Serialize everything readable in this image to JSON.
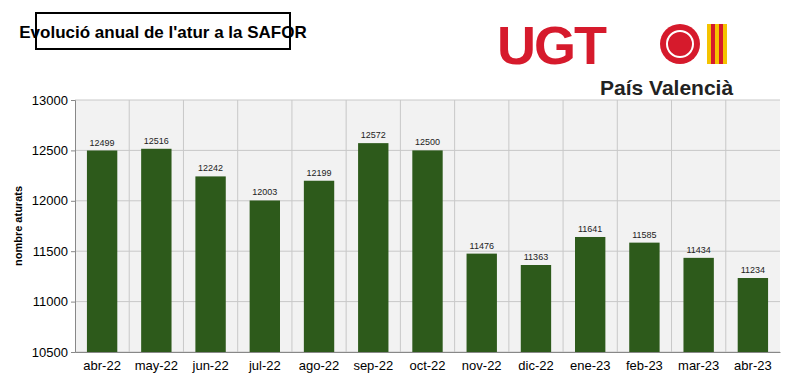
{
  "chart_data": {
    "type": "bar",
    "title": "Evolució anual de l'atur a la SAFOR",
    "annotations": [
      "UGT",
      "País Valencià"
    ],
    "y_label": "nombre aturats",
    "categories": [
      "abr-22",
      "may-22",
      "jun-22",
      "jul-22",
      "ago-22",
      "sep-22",
      "oct-22",
      "nov-22",
      "dic-22",
      "ene-23",
      "feb-23",
      "mar-23",
      "abr-23"
    ],
    "values": [
      12499,
      12516,
      12242,
      12003,
      12199,
      12572,
      12500,
      11476,
      11363,
      11641,
      11585,
      11434,
      11234
    ],
    "color": "#2d5a1b",
    "ylim": [
      10500,
      13000
    ],
    "yticks": [
      10500,
      11000,
      11500,
      12000,
      12500,
      13000
    ],
    "grid": true,
    "data_labels": true
  }
}
